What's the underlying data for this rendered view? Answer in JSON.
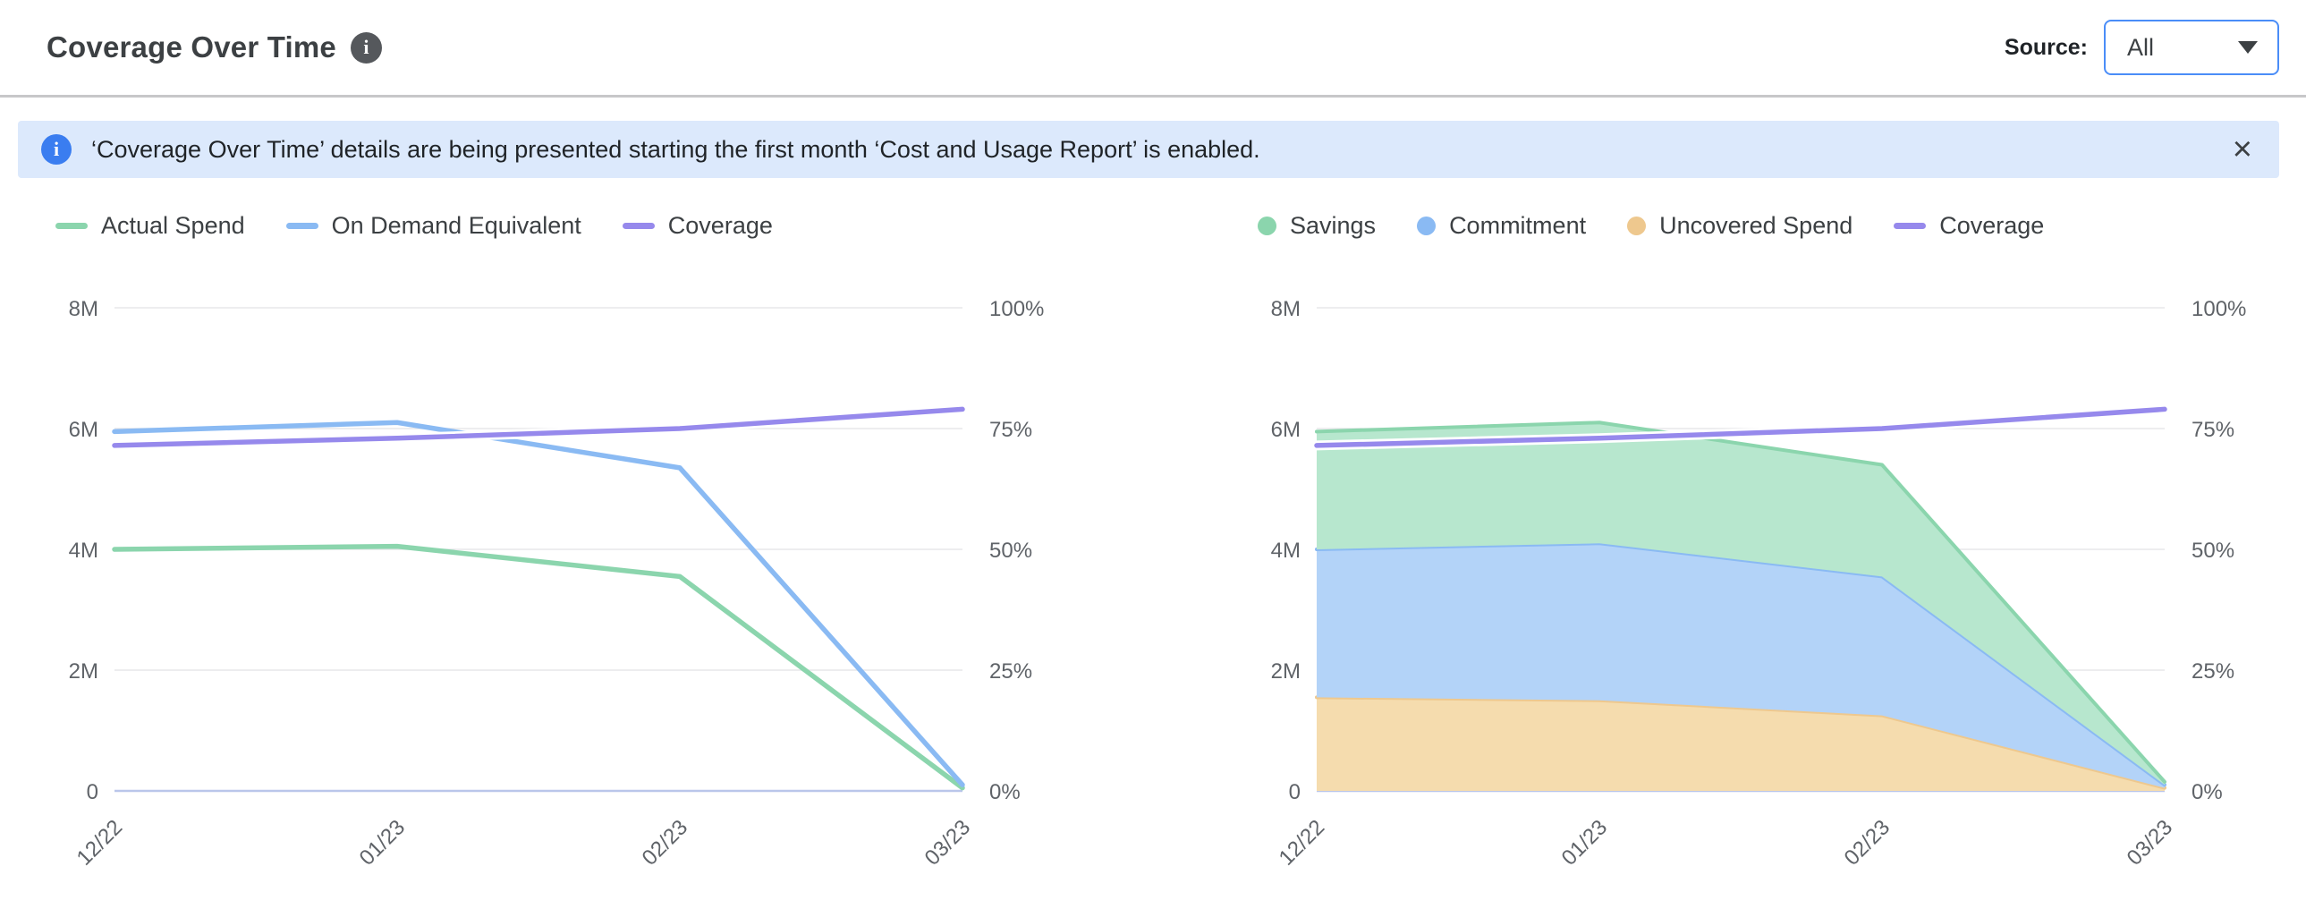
{
  "header": {
    "title": "Coverage Over Time",
    "source_label": "Source:",
    "source_value": "All"
  },
  "icons": {
    "info_glyph": "i"
  },
  "banner": {
    "text": "‘Coverage Over Time’ details are being presented starting the first month ‘Cost and Usage Report’ is enabled.",
    "close_glyph": "×"
  },
  "colors": {
    "green": "#8bd5ad",
    "green_fill": "#b7e7ce",
    "blue": "#8abaf3",
    "blue_fill": "#b3d3f8",
    "orange": "#eec88e",
    "orange_fill": "#f5dcae",
    "purple": "#9689ec",
    "grid": "#e7e7ea",
    "zero_axis": "#bac6ea",
    "axis_text": "#5f6368",
    "banner_bg": "#dce9fc",
    "banner_icon_blue": "#3a7df0",
    "dropdown_border": "#4a8df8"
  },
  "chart_data": [
    {
      "type": "line",
      "title": "",
      "x": [
        "12/22",
        "01/23",
        "02/23",
        "03/23"
      ],
      "values_unit": "millions USD",
      "series": [
        {
          "name": "Actual Spend",
          "axis": "left",
          "marker": "line",
          "color_key": "green",
          "values_millions": [
            4.0,
            4.05,
            3.55,
            0.05
          ]
        },
        {
          "name": "On Demand Equivalent",
          "axis": "left",
          "marker": "line",
          "color_key": "blue",
          "values_millions": [
            5.95,
            6.1,
            5.35,
            0.1
          ]
        },
        {
          "name": "Coverage",
          "axis": "right",
          "marker": "line",
          "color_key": "purple",
          "values_percent": [
            71.5,
            73,
            75,
            79
          ]
        }
      ],
      "left_axis": {
        "ticks": [
          "0",
          "2M",
          "4M",
          "6M",
          "8M"
        ],
        "min": 0,
        "max": 8
      },
      "right_axis": {
        "ticks": [
          "0%",
          "25%",
          "50%",
          "75%",
          "100%"
        ],
        "min": 0,
        "max": 100
      },
      "legend_position": "top-left",
      "grid": true
    },
    {
      "type": "area",
      "stacked": true,
      "title": "",
      "x": [
        "12/22",
        "01/23",
        "02/23",
        "03/23"
      ],
      "values_unit": "millions USD",
      "series": [
        {
          "name": "Savings",
          "axis": "left",
          "marker": "circle",
          "color_key": "green",
          "stack_order": 2,
          "values_millions": [
            1.95,
            2.0,
            1.85,
            0.05
          ]
        },
        {
          "name": "Commitment",
          "axis": "left",
          "marker": "circle",
          "color_key": "blue",
          "stack_order": 1,
          "values_millions": [
            2.45,
            2.6,
            2.3,
            0.05
          ]
        },
        {
          "name": "Uncovered Spend",
          "axis": "left",
          "marker": "circle",
          "color_key": "orange",
          "stack_order": 0,
          "values_millions": [
            1.55,
            1.5,
            1.25,
            0.05
          ]
        },
        {
          "name": "Coverage",
          "axis": "right",
          "marker": "line",
          "color_key": "purple",
          "values_percent": [
            71.5,
            73,
            75,
            79
          ]
        }
      ],
      "left_axis": {
        "ticks": [
          "0",
          "2M",
          "4M",
          "6M",
          "8M"
        ],
        "min": 0,
        "max": 8
      },
      "right_axis": {
        "ticks": [
          "0%",
          "25%",
          "50%",
          "75%",
          "100%"
        ],
        "min": 0,
        "max": 100
      },
      "legend_position": "top-left",
      "grid": true
    }
  ]
}
